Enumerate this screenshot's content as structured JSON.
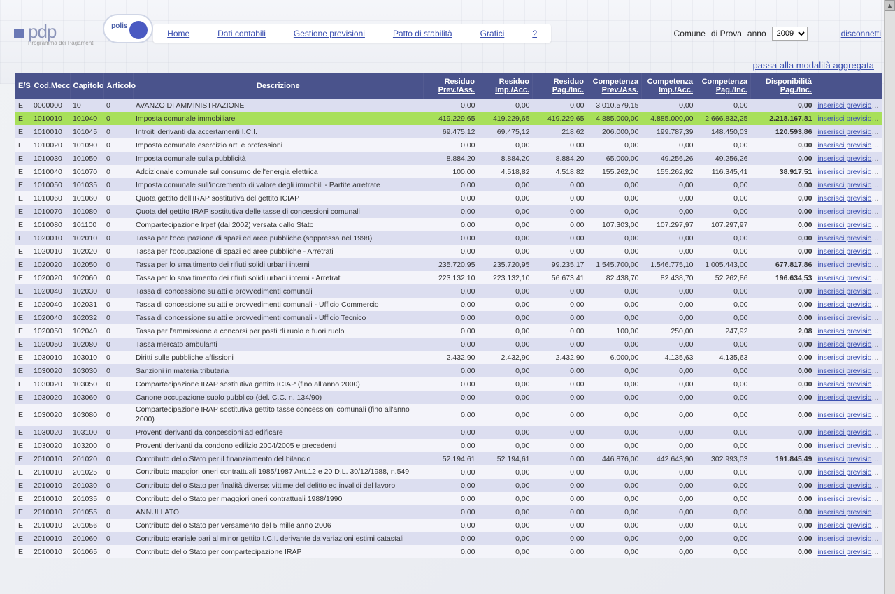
{
  "header": {
    "logo_text": "pdp",
    "logo_subtitle": "Programma dei Pagamenti",
    "menu": [
      "Home",
      "Dati contabili",
      "Gestione previsioni",
      "Patto di stabilità",
      "Grafici",
      "?"
    ],
    "right_label_1": "Comune",
    "right_label_2": "di Prova",
    "right_label_3": "anno",
    "year_options": [
      "2009"
    ],
    "year_selected": "2009",
    "disconnect": "disconnetti"
  },
  "mode_link": "passa alla modalità aggregata",
  "columns": {
    "es": "E/S",
    "codmecc": "Cod.Mecc",
    "capitolo": "Capitolo",
    "articolo": "Articolo",
    "descrizione": "Descrizione",
    "res_prev": "Residuo Prev./Ass.",
    "res_imp": "Residuo Imp./Acc.",
    "res_pag": "Residuo Pag./Inc.",
    "comp_prev": "Competenza Prev./Ass.",
    "comp_imp": "Competenza Imp./Acc.",
    "comp_pag": "Competenza Pag./Inc.",
    "disp": "Disponibilità Pag./Inc."
  },
  "action_label": "inserisci previsione",
  "rows": [
    {
      "es": "E",
      "cm": "0000000",
      "cap": "10",
      "art": "0",
      "d": "AVANZO DI AMMINISTRAZIONE",
      "v": [
        "0,00",
        "0,00",
        "0,00",
        "3.010.579,15",
        "0,00",
        "0,00",
        "0,00"
      ],
      "hl": false
    },
    {
      "es": "E",
      "cm": "1010010",
      "cap": "101040",
      "art": "0",
      "d": "Imposta comunale immobiliare",
      "v": [
        "419.229,65",
        "419.229,65",
        "419.229,65",
        "4.885.000,00",
        "4.885.000,00",
        "2.666.832,25",
        "2.218.167,81"
      ],
      "hl": true
    },
    {
      "es": "E",
      "cm": "1010010",
      "cap": "101045",
      "art": "0",
      "d": "Introiti derivanti da accertamenti I.C.I.",
      "v": [
        "69.475,12",
        "69.475,12",
        "218,62",
        "206.000,00",
        "199.787,39",
        "148.450,03",
        "120.593,86"
      ],
      "hl": false
    },
    {
      "es": "E",
      "cm": "1010020",
      "cap": "101090",
      "art": "0",
      "d": "Imposta comunale esercizio arti e professioni",
      "v": [
        "0,00",
        "0,00",
        "0,00",
        "0,00",
        "0,00",
        "0,00",
        "0,00"
      ],
      "hl": false
    },
    {
      "es": "E",
      "cm": "1010030",
      "cap": "101050",
      "art": "0",
      "d": "Imposta comunale sulla pubblicità",
      "v": [
        "8.884,20",
        "8.884,20",
        "8.884,20",
        "65.000,00",
        "49.256,26",
        "49.256,26",
        "0,00"
      ],
      "hl": false
    },
    {
      "es": "E",
      "cm": "1010040",
      "cap": "101070",
      "art": "0",
      "d": "Addizionale comunale sul consumo dell'energia elettrica",
      "v": [
        "100,00",
        "4.518,82",
        "4.518,82",
        "155.262,00",
        "155.262,92",
        "116.345,41",
        "38.917,51"
      ],
      "hl": false
    },
    {
      "es": "E",
      "cm": "1010050",
      "cap": "101035",
      "art": "0",
      "d": "Imposta comunale sull'incremento di valore degli immobili - Partite arretrate",
      "v": [
        "0,00",
        "0,00",
        "0,00",
        "0,00",
        "0,00",
        "0,00",
        "0,00"
      ],
      "hl": false
    },
    {
      "es": "E",
      "cm": "1010060",
      "cap": "101060",
      "art": "0",
      "d": "Quota gettito dell'IRAP sostitutiva del gettito ICIAP",
      "v": [
        "0,00",
        "0,00",
        "0,00",
        "0,00",
        "0,00",
        "0,00",
        "0,00"
      ],
      "hl": false
    },
    {
      "es": "E",
      "cm": "1010070",
      "cap": "101080",
      "art": "0",
      "d": "Quota del gettito IRAP sostitutiva delle tasse di concessioni comunali",
      "v": [
        "0,00",
        "0,00",
        "0,00",
        "0,00",
        "0,00",
        "0,00",
        "0,00"
      ],
      "hl": false
    },
    {
      "es": "E",
      "cm": "1010080",
      "cap": "101100",
      "art": "0",
      "d": "Compartecipazione Irpef (dal 2002) versata dallo Stato",
      "v": [
        "0,00",
        "0,00",
        "0,00",
        "107.303,00",
        "107.297,97",
        "107.297,97",
        "0,00"
      ],
      "hl": false
    },
    {
      "es": "E",
      "cm": "1020010",
      "cap": "102010",
      "art": "0",
      "d": "Tassa per l'occupazione di spazi ed aree pubbliche (soppressa nel 1998)",
      "v": [
        "0,00",
        "0,00",
        "0,00",
        "0,00",
        "0,00",
        "0,00",
        "0,00"
      ],
      "hl": false
    },
    {
      "es": "E",
      "cm": "1020010",
      "cap": "102020",
      "art": "0",
      "d": "Tassa per l'occupazione di spazi ed aree pubbliche - Arretrati",
      "v": [
        "0,00",
        "0,00",
        "0,00",
        "0,00",
        "0,00",
        "0,00",
        "0,00"
      ],
      "hl": false
    },
    {
      "es": "E",
      "cm": "1020020",
      "cap": "102050",
      "art": "0",
      "d": "Tassa per lo smaltimento dei rifiuti solidi urbani interni",
      "v": [
        "235.720,95",
        "235.720,95",
        "99.235,17",
        "1.545.700,00",
        "1.546.775,10",
        "1.005.443,00",
        "677.817,86"
      ],
      "hl": false
    },
    {
      "es": "E",
      "cm": "1020020",
      "cap": "102060",
      "art": "0",
      "d": "Tassa per lo smaltimento dei rifiuti solidi urbani interni - Arretrati",
      "v": [
        "223.132,10",
        "223.132,10",
        "56.673,41",
        "82.438,70",
        "82.438,70",
        "52.262,86",
        "196.634,53"
      ],
      "hl": false
    },
    {
      "es": "E",
      "cm": "1020040",
      "cap": "102030",
      "art": "0",
      "d": "Tassa di concessione su atti e provvedimenti comunali",
      "v": [
        "0,00",
        "0,00",
        "0,00",
        "0,00",
        "0,00",
        "0,00",
        "0,00"
      ],
      "hl": false
    },
    {
      "es": "E",
      "cm": "1020040",
      "cap": "102031",
      "art": "0",
      "d": "Tassa di concessione su atti e provvedimenti comunali - Ufficio Commercio",
      "v": [
        "0,00",
        "0,00",
        "0,00",
        "0,00",
        "0,00",
        "0,00",
        "0,00"
      ],
      "hl": false
    },
    {
      "es": "E",
      "cm": "1020040",
      "cap": "102032",
      "art": "0",
      "d": "Tassa di concessione su atti e provvedimenti comunali - Ufficio Tecnico",
      "v": [
        "0,00",
        "0,00",
        "0,00",
        "0,00",
        "0,00",
        "0,00",
        "0,00"
      ],
      "hl": false
    },
    {
      "es": "E",
      "cm": "1020050",
      "cap": "102040",
      "art": "0",
      "d": "Tassa per l'ammissione a concorsi per posti di ruolo e fuori ruolo",
      "v": [
        "0,00",
        "0,00",
        "0,00",
        "100,00",
        "250,00",
        "247,92",
        "2,08"
      ],
      "hl": false
    },
    {
      "es": "E",
      "cm": "1020050",
      "cap": "102080",
      "art": "0",
      "d": "Tassa mercato ambulanti",
      "v": [
        "0,00",
        "0,00",
        "0,00",
        "0,00",
        "0,00",
        "0,00",
        "0,00"
      ],
      "hl": false
    },
    {
      "es": "E",
      "cm": "1030010",
      "cap": "103010",
      "art": "0",
      "d": "Diritti sulle pubbliche affissioni",
      "v": [
        "2.432,90",
        "2.432,90",
        "2.432,90",
        "6.000,00",
        "4.135,63",
        "4.135,63",
        "0,00"
      ],
      "hl": false
    },
    {
      "es": "E",
      "cm": "1030020",
      "cap": "103030",
      "art": "0",
      "d": "Sanzioni in materia tributaria",
      "v": [
        "0,00",
        "0,00",
        "0,00",
        "0,00",
        "0,00",
        "0,00",
        "0,00"
      ],
      "hl": false
    },
    {
      "es": "E",
      "cm": "1030020",
      "cap": "103050",
      "art": "0",
      "d": "Compartecipazione IRAP sostitutiva gettito ICIAP (fino all'anno 2000)",
      "v": [
        "0,00",
        "0,00",
        "0,00",
        "0,00",
        "0,00",
        "0,00",
        "0,00"
      ],
      "hl": false
    },
    {
      "es": "E",
      "cm": "1030020",
      "cap": "103060",
      "art": "0",
      "d": "Canone occupazione suolo pubblico (del. C.C. n. 134/90)",
      "v": [
        "0,00",
        "0,00",
        "0,00",
        "0,00",
        "0,00",
        "0,00",
        "0,00"
      ],
      "hl": false
    },
    {
      "es": "E",
      "cm": "1030020",
      "cap": "103080",
      "art": "0",
      "d": "Compartecipazione IRAP sostitutiva gettito tasse concessioni comunali (fino all'anno 2000)",
      "v": [
        "0,00",
        "0,00",
        "0,00",
        "0,00",
        "0,00",
        "0,00",
        "0,00"
      ],
      "hl": false,
      "wrap": true
    },
    {
      "es": "E",
      "cm": "1030020",
      "cap": "103100",
      "art": "0",
      "d": "Proventi derivanti da concessioni ad edificare",
      "v": [
        "0,00",
        "0,00",
        "0,00",
        "0,00",
        "0,00",
        "0,00",
        "0,00"
      ],
      "hl": false
    },
    {
      "es": "E",
      "cm": "1030020",
      "cap": "103200",
      "art": "0",
      "d": "Proventi derivanti da condono edilizio 2004/2005 e precedenti",
      "v": [
        "0,00",
        "0,00",
        "0,00",
        "0,00",
        "0,00",
        "0,00",
        "0,00"
      ],
      "hl": false
    },
    {
      "es": "E",
      "cm": "2010010",
      "cap": "201020",
      "art": "0",
      "d": "Contributo dello Stato per il finanziamento del bilancio",
      "v": [
        "52.194,61",
        "52.194,61",
        "0,00",
        "446.876,00",
        "442.643,90",
        "302.993,03",
        "191.845,49"
      ],
      "hl": false
    },
    {
      "es": "E",
      "cm": "2010010",
      "cap": "201025",
      "art": "0",
      "d": "Contributo maggiori oneri contrattuali 1985/1987 Artt.12 e 20 D.L. 30/12/1988, n.549",
      "v": [
        "0,00",
        "0,00",
        "0,00",
        "0,00",
        "0,00",
        "0,00",
        "0,00"
      ],
      "hl": false,
      "wrap": true
    },
    {
      "es": "E",
      "cm": "2010010",
      "cap": "201030",
      "art": "0",
      "d": "Contributo dello Stato per finalità diverse: vittime del delitto ed invalidi del lavoro",
      "v": [
        "0,00",
        "0,00",
        "0,00",
        "0,00",
        "0,00",
        "0,00",
        "0,00"
      ],
      "hl": false
    },
    {
      "es": "E",
      "cm": "2010010",
      "cap": "201035",
      "art": "0",
      "d": "Contributo dello Stato per maggiori oneri contrattuali 1988/1990",
      "v": [
        "0,00",
        "0,00",
        "0,00",
        "0,00",
        "0,00",
        "0,00",
        "0,00"
      ],
      "hl": false
    },
    {
      "es": "E",
      "cm": "2010010",
      "cap": "201055",
      "art": "0",
      "d": "ANNULLATO",
      "v": [
        "0,00",
        "0,00",
        "0,00",
        "0,00",
        "0,00",
        "0,00",
        "0,00"
      ],
      "hl": false
    },
    {
      "es": "E",
      "cm": "2010010",
      "cap": "201056",
      "art": "0",
      "d": "Contributo dello Stato per versamento del 5 mille anno 2006",
      "v": [
        "0,00",
        "0,00",
        "0,00",
        "0,00",
        "0,00",
        "0,00",
        "0,00"
      ],
      "hl": false
    },
    {
      "es": "E",
      "cm": "2010010",
      "cap": "201060",
      "art": "0",
      "d": "Contributo erariale pari al minor gettito I.C.I. derivante da variazioni estimi catastali",
      "v": [
        "0,00",
        "0,00",
        "0,00",
        "0,00",
        "0,00",
        "0,00",
        "0,00"
      ],
      "hl": false
    },
    {
      "es": "E",
      "cm": "2010010",
      "cap": "201065",
      "art": "0",
      "d": "Contributo dello Stato per compartecipazione IRAP",
      "v": [
        "0,00",
        "0,00",
        "0,00",
        "0,00",
        "0,00",
        "0,00",
        "0,00"
      ],
      "hl": false
    }
  ],
  "colors": {
    "header_bg": "#4a538c",
    "row_odd": "#dcdef0",
    "row_even": "#f4f4fa",
    "highlight": "#a8e05a",
    "link": "#3a4fb0"
  }
}
